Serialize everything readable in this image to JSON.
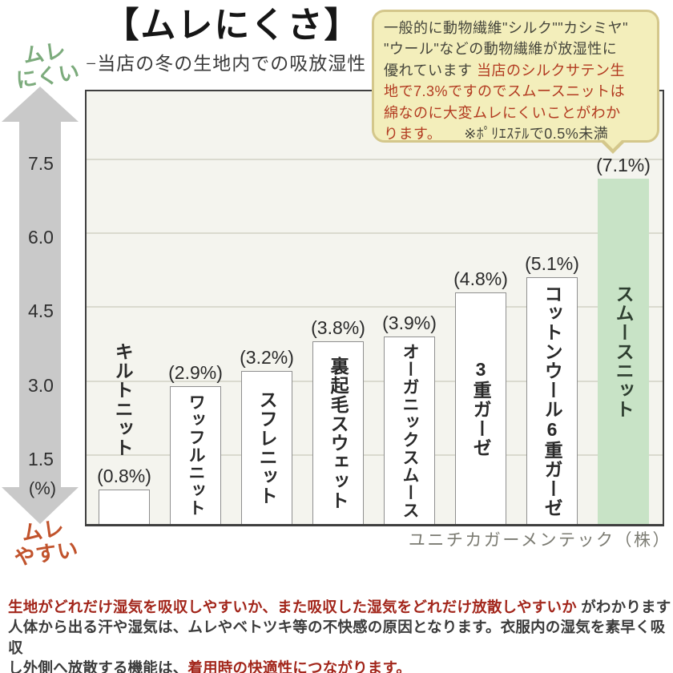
{
  "header": {
    "title": "【ムレにくさ】",
    "subtitle": "−当店の冬の生地内での吸放湿性 -"
  },
  "axis": {
    "top_label": "ムレ\nにくい",
    "bottom_label": "ムレ\nやすい",
    "unit_label": "(%)"
  },
  "chart_data": {
    "type": "bar",
    "title": "【ムレにくさ】",
    "subtitle": "−当店の冬の生地内での吸放湿性 -",
    "categories": [
      "キルトニット",
      "ワッフルニット",
      "スフレニット",
      "裏起毛スウェット",
      "オーガニックスムース",
      "3重ガーゼ",
      "コットンウール6重ガーゼ",
      "スムースニット"
    ],
    "values": [
      0.8,
      2.9,
      3.2,
      3.8,
      3.9,
      4.8,
      5.1,
      7.1
    ],
    "value_labels": [
      "(0.8%)",
      "(2.9%)",
      "(3.2%)",
      "(3.8%)",
      "(3.9%)",
      "(4.8%)",
      "(5.1%)",
      "(7.1%)"
    ],
    "yticks": [
      7.5,
      6.0,
      4.5,
      3.0,
      1.5
    ],
    "y_unit": "(%)",
    "ylim": [
      0,
      8.8
    ],
    "grid": true,
    "axis_arrow_top_label": "ムレにくい",
    "axis_arrow_bottom_label": "ムレやすい",
    "highlight_index": 7,
    "highlight_color": "#c8e3c6",
    "bar_color": "#ffffff",
    "source": "ユニチカガーメンテック（株）"
  },
  "bubble": {
    "lines": [
      [
        {
          "text": "一般的に動物繊維\"シルク\"\"カシミヤ\"",
          "color": "dark"
        }
      ],
      [
        {
          "text": "\"ウール\"などの動物繊維が放湿性に",
          "color": "dark"
        }
      ],
      [
        {
          "text": "優れています ",
          "color": "dark"
        },
        {
          "text": "当店のシルクサテン生",
          "color": "red"
        }
      ],
      [
        {
          "text": "地で7.3%ですのでスムースニットは",
          "color": "red"
        }
      ],
      [
        {
          "text": "綿なのに大変ムレにくいことがわか",
          "color": "red"
        }
      ],
      [
        {
          "text": "ります。",
          "color": "red"
        },
        {
          "text": "　　※ﾎﾟﾘｴｽﾃﾙで0.5%未満",
          "color": "dark"
        }
      ]
    ]
  },
  "source": "ユニチカガーメンテック（株）",
  "footer": {
    "lines": [
      [
        {
          "text": "生地がどれだけ湿気を吸収しやすいか、また吸収した湿気をどれだけ放散しやすいか",
          "color": "red"
        },
        {
          "text": " がわかります",
          "color": "dark"
        }
      ],
      [
        {
          "text": "人体から出る汗や湿気は、ムレやベトツキ等の不快感の原因となります。衣服内の湿気を素早く吸収",
          "color": "dark"
        }
      ],
      [
        {
          "text": "し外側へ放散する機能は、",
          "color": "dark"
        },
        {
          "text": "着用時の快適性につながります。",
          "color": "red"
        }
      ]
    ]
  },
  "colors": {
    "accent_green": "#7cab7c",
    "accent_orange": "#c1532c",
    "bubble_bg": "#f3eebb",
    "bubble_border": "#d4c78b",
    "bubble_red": "#b23a20",
    "footer_red": "#a2251a",
    "text_dark": "#3b3b3b",
    "highlight_bar": "#c8e3c6",
    "arrow_gray": "#c9c9c9"
  }
}
